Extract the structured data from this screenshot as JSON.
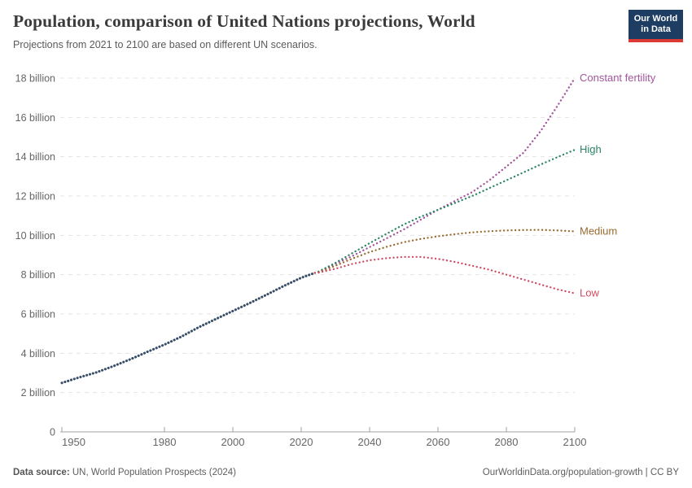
{
  "header": {
    "title": "Population, comparison of United Nations projections, World",
    "subtitle": "Projections from 2021 to 2100 are based on different UN scenarios.",
    "logo": {
      "line1": "Our World",
      "line2": "in Data",
      "bg_color": "#1d3d63",
      "accent_color": "#dc3a34"
    }
  },
  "footer": {
    "source_label": "Data source:",
    "source_text": " UN, World Population Prospects (2024)",
    "link_text": "OurWorldinData.org/population-growth | CC BY"
  },
  "chart_data": {
    "type": "line",
    "title": "Population, comparison of United Nations projections, World",
    "subtitle": "Projections from 2021 to 2100 are based on different UN scenarios.",
    "xlabel": "",
    "ylabel": "",
    "x_range": [
      1950,
      2100
    ],
    "y_range": [
      0,
      18
    ],
    "y_unit": "billion",
    "grid": "horizontal-dashed",
    "legend_position": "right-end-labels",
    "x_ticks": [
      1950,
      1980,
      2000,
      2020,
      2040,
      2060,
      2080,
      2100
    ],
    "y_ticks": [
      {
        "value": 0,
        "label": "0"
      },
      {
        "value": 2,
        "label": "2 billion"
      },
      {
        "value": 4,
        "label": "4 billion"
      },
      {
        "value": 6,
        "label": "6 billion"
      },
      {
        "value": 8,
        "label": "8 billion"
      },
      {
        "value": 10,
        "label": "10 billion"
      },
      {
        "value": 12,
        "label": "12 billion"
      },
      {
        "value": 14,
        "label": "14 billion"
      },
      {
        "value": 16,
        "label": "16 billion"
      },
      {
        "value": 18,
        "label": "18 billion"
      }
    ],
    "series": [
      {
        "name": "historical-estimates",
        "label": "",
        "color": "#374e66",
        "style": "dense-dots",
        "x": [
          1950,
          1955,
          1960,
          1965,
          1970,
          1975,
          1980,
          1985,
          1990,
          1995,
          2000,
          2005,
          2010,
          2015,
          2020,
          2024
        ],
        "values": [
          2.49,
          2.77,
          3.02,
          3.34,
          3.69,
          4.07,
          4.44,
          4.85,
          5.32,
          5.74,
          6.15,
          6.56,
          6.99,
          7.43,
          7.84,
          8.09
        ]
      },
      {
        "name": "constant-fertility",
        "label": "Constant fertility",
        "color": "#a2559c",
        "style": "dots",
        "x": [
          2024,
          2025,
          2030,
          2035,
          2040,
          2045,
          2050,
          2055,
          2060,
          2065,
          2070,
          2075,
          2080,
          2085,
          2090,
          2095,
          2100
        ],
        "values": [
          8.09,
          8.12,
          8.55,
          8.95,
          9.4,
          9.85,
          10.3,
          10.8,
          11.3,
          11.75,
          12.2,
          12.8,
          13.5,
          14.2,
          15.3,
          16.6,
          18.0
        ]
      },
      {
        "name": "high",
        "label": "High",
        "color": "#2c8465",
        "style": "dots",
        "x": [
          2024,
          2025,
          2030,
          2035,
          2040,
          2045,
          2050,
          2055,
          2060,
          2065,
          2070,
          2075,
          2080,
          2085,
          2090,
          2095,
          2100
        ],
        "values": [
          8.09,
          8.15,
          8.6,
          9.1,
          9.6,
          10.08,
          10.55,
          10.95,
          11.3,
          11.65,
          12.0,
          12.4,
          12.8,
          13.2,
          13.6,
          13.98,
          14.35
        ]
      },
      {
        "name": "medium",
        "label": "Medium",
        "color": "#9a6b2f",
        "style": "dots",
        "x": [
          2024,
          2025,
          2030,
          2035,
          2040,
          2045,
          2050,
          2055,
          2060,
          2065,
          2070,
          2075,
          2080,
          2085,
          2090,
          2095,
          2100
        ],
        "values": [
          8.09,
          8.12,
          8.45,
          8.82,
          9.15,
          9.42,
          9.65,
          9.82,
          9.95,
          10.06,
          10.15,
          10.21,
          10.25,
          10.27,
          10.28,
          10.25,
          10.2
        ]
      },
      {
        "name": "low",
        "label": "Low",
        "color": "#cf4a63",
        "style": "dots",
        "x": [
          2024,
          2025,
          2030,
          2035,
          2040,
          2045,
          2050,
          2055,
          2060,
          2065,
          2070,
          2075,
          2080,
          2085,
          2090,
          2095,
          2100
        ],
        "values": [
          8.09,
          8.1,
          8.3,
          8.55,
          8.73,
          8.84,
          8.9,
          8.9,
          8.8,
          8.65,
          8.45,
          8.25,
          8.0,
          7.75,
          7.5,
          7.25,
          7.05
        ]
      }
    ],
    "axis_colors": {
      "grid": "#e3e3e3",
      "axis_line": "#a3a3a3",
      "tick_text": "#666666"
    }
  }
}
